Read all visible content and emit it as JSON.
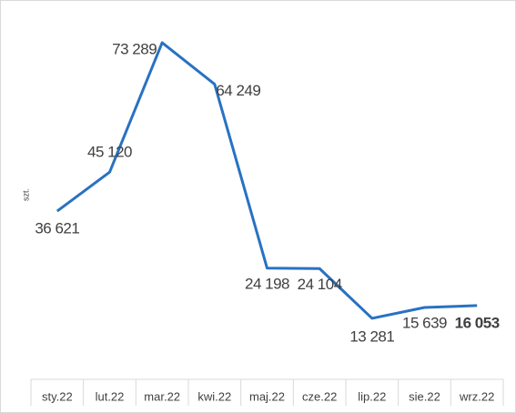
{
  "chart_data": {
    "type": "line",
    "y_label": "szt.",
    "categories": [
      "sty.22",
      "lut.22",
      "mar.22",
      "kwi.22",
      "maj.22",
      "cze.22",
      "lip.22",
      "sie.22",
      "wrz.22"
    ],
    "series": [
      {
        "color": "#2872c2",
        "values": [
          36621,
          45120,
          73289,
          64249,
          24198,
          24104,
          13281,
          15639,
          16053
        ],
        "value_labels": [
          "36 621",
          "45 120",
          "73 289",
          "64 249",
          "24 198",
          "24 104",
          "13 281",
          "15 639",
          "16 053"
        ]
      }
    ],
    "ylim": [
      0,
      80000
    ]
  }
}
